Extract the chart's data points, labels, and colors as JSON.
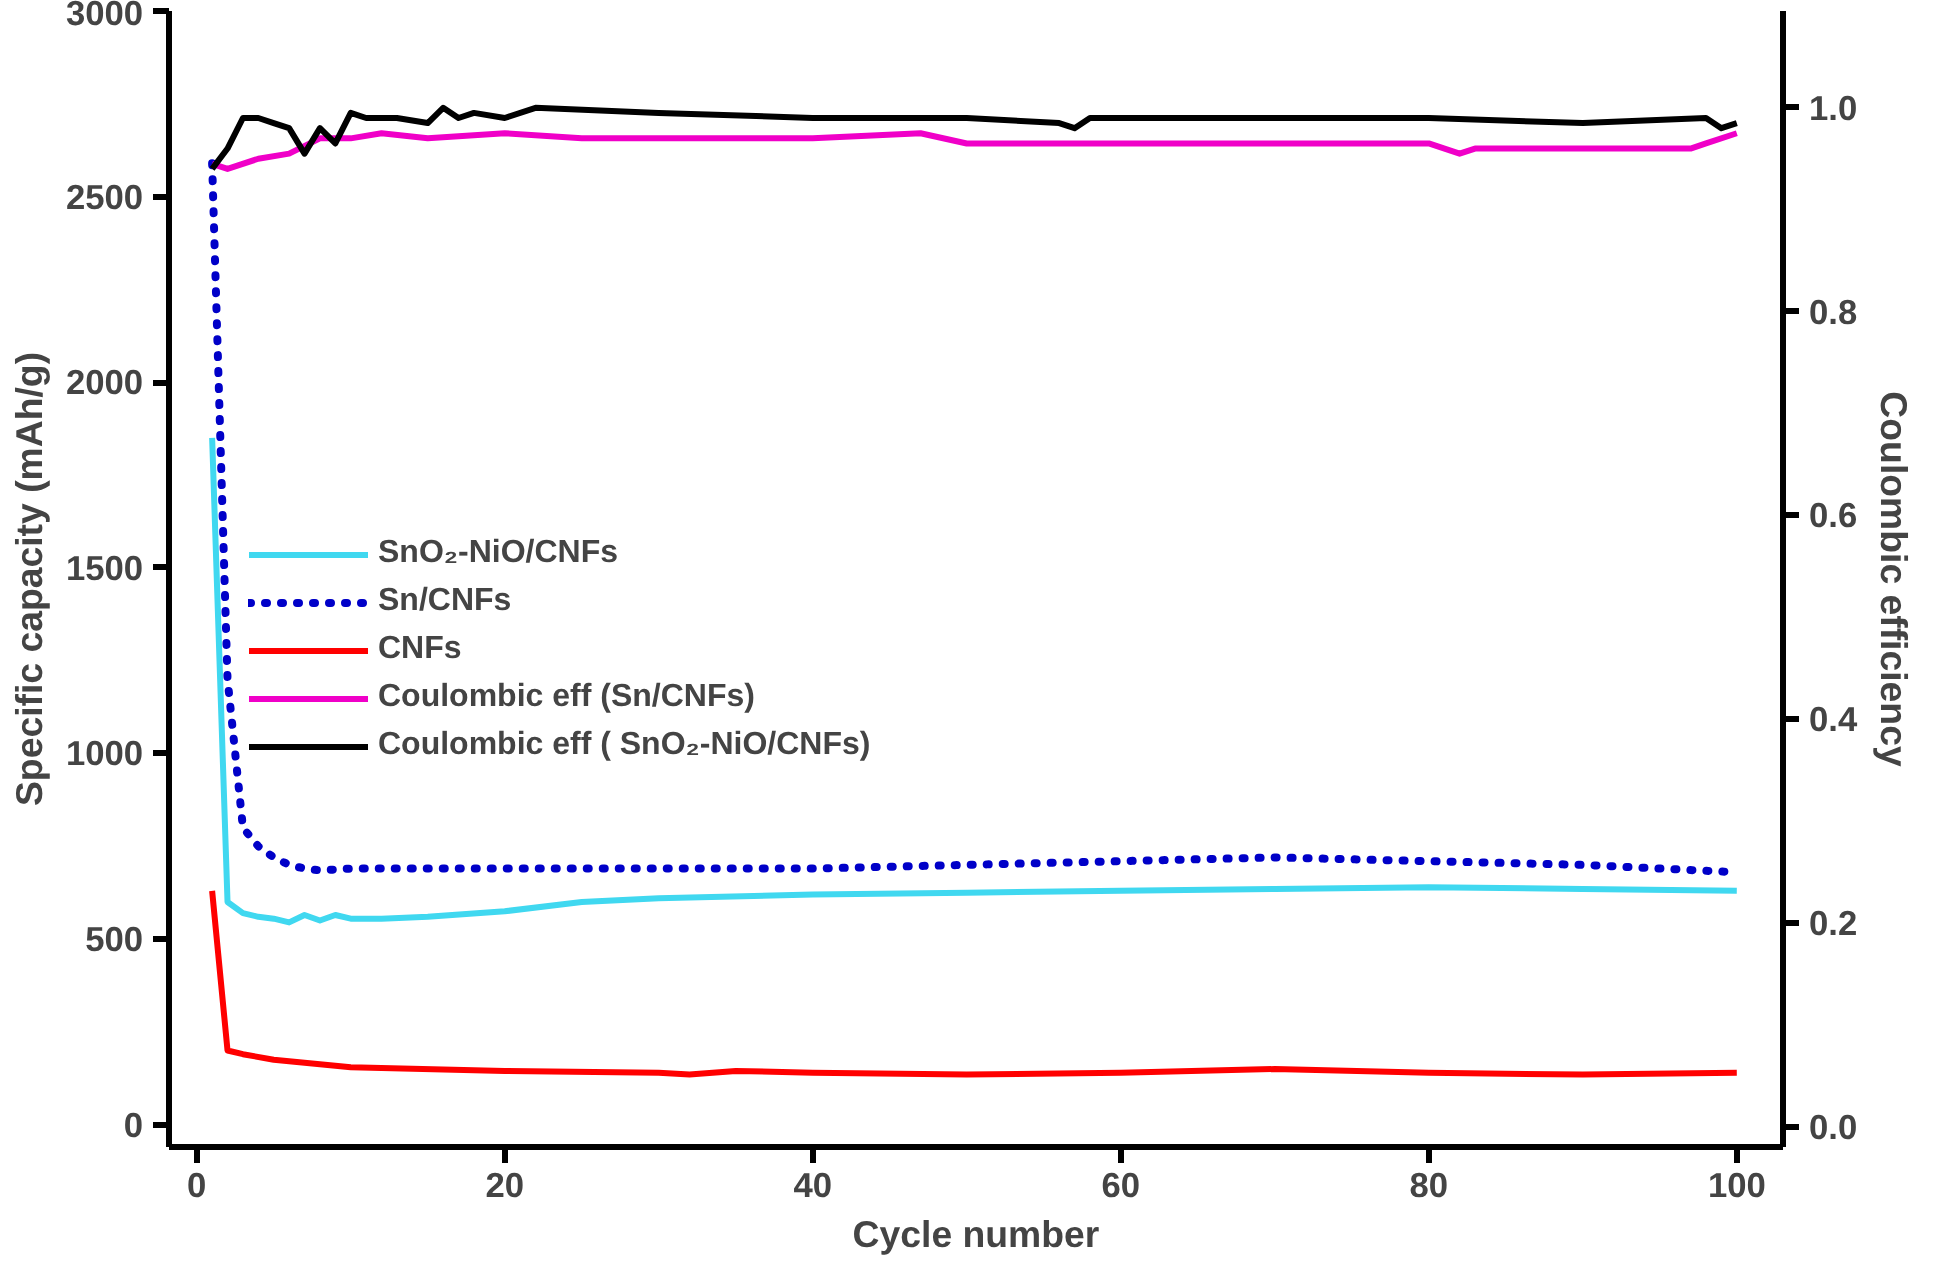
{
  "chart_data": {
    "type": "line",
    "xlabel": "Cycle number",
    "ylabel": "Specific capacity (mAh/g)",
    "y2label": "Coulombic efficiency",
    "xlim": [
      -1.8,
      103
    ],
    "xticks": [
      0,
      20,
      40,
      60,
      80,
      100
    ],
    "ylim": [
      -60,
      3000
    ],
    "yticks": [
      0,
      500,
      1000,
      1500,
      2000,
      2500,
      3000
    ],
    "y2lim": [
      -0.02,
      1.095
    ],
    "y2ticks": [
      {
        "value": 0,
        "label": "0.0"
      },
      0.2,
      0.4,
      0.6,
      0.8,
      {
        "value": 1,
        "label": "1.0"
      }
    ],
    "legend": "left",
    "grid": false,
    "marker": "none",
    "series": [
      {
        "name": "SnO₂-NiO/CNFs",
        "color": "#40d8f0",
        "line_style": "solid",
        "x": [
          1,
          2,
          3,
          4,
          5,
          6,
          7,
          8,
          9,
          10,
          12,
          15,
          20,
          25,
          30,
          40,
          50,
          60,
          70,
          80,
          90,
          100
        ],
        "values": [
          1850,
          600,
          570,
          560,
          555,
          545,
          565,
          550,
          565,
          555,
          555,
          560,
          575,
          600,
          610,
          620,
          625,
          630,
          635,
          640,
          635,
          630
        ]
      },
      {
        "name": "Sn/CNFs",
        "color": "#0000c8",
        "line_style": "dotted",
        "x": [
          1,
          2,
          3,
          4,
          5,
          6,
          7,
          8,
          10,
          20,
          40,
          60,
          70,
          80,
          90,
          100
        ],
        "values": [
          2590,
          1200,
          800,
          750,
          720,
          700,
          690,
          685,
          690,
          690,
          690,
          710,
          720,
          710,
          700,
          680
        ]
      },
      {
        "name": "CNFs",
        "color": "#ff0000",
        "line_style": "solid",
        "x": [
          1,
          2,
          3,
          5,
          10,
          20,
          30,
          32,
          35,
          40,
          50,
          60,
          70,
          80,
          90,
          100
        ],
        "values": [
          630,
          200,
          190,
          175,
          155,
          145,
          140,
          135,
          145,
          140,
          135,
          140,
          150,
          140,
          135,
          140
        ]
      },
      {
        "name": "Coulombic eff (Sn/CNFs)",
        "color": "#f000c8",
        "line_style": "solid",
        "axis": "y2",
        "x": [
          1,
          2,
          4,
          6,
          8,
          10,
          12,
          15,
          20,
          25,
          30,
          40,
          47,
          50,
          60,
          70,
          80,
          82,
          83,
          90,
          97,
          98,
          100
        ],
        "values": [
          0.945,
          0.94,
          0.95,
          0.955,
          0.97,
          0.97,
          0.975,
          0.97,
          0.975,
          0.97,
          0.97,
          0.97,
          0.975,
          0.965,
          0.965,
          0.965,
          0.965,
          0.955,
          0.96,
          0.96,
          0.96,
          0.965,
          0.975
        ]
      },
      {
        "name": "Coulombic eff ( SnO₂-NiO/CNFs)",
        "color": "#000000",
        "line_style": "solid",
        "axis": "y2",
        "x": [
          1,
          2,
          3,
          4,
          5,
          6,
          7,
          8,
          9,
          10,
          11,
          13,
          15,
          16,
          17,
          18,
          20,
          22,
          30,
          40,
          50,
          56,
          57,
          58,
          70,
          80,
          90,
          98,
          99,
          100
        ],
        "values": [
          0.94,
          0.96,
          0.99,
          0.99,
          0.985,
          0.98,
          0.955,
          0.98,
          0.965,
          0.995,
          0.99,
          0.99,
          0.985,
          1.0,
          0.99,
          0.995,
          0.99,
          1.0,
          0.995,
          0.99,
          0.99,
          0.985,
          0.98,
          0.99,
          0.99,
          0.99,
          0.985,
          0.99,
          0.98,
          0.985
        ]
      }
    ]
  }
}
